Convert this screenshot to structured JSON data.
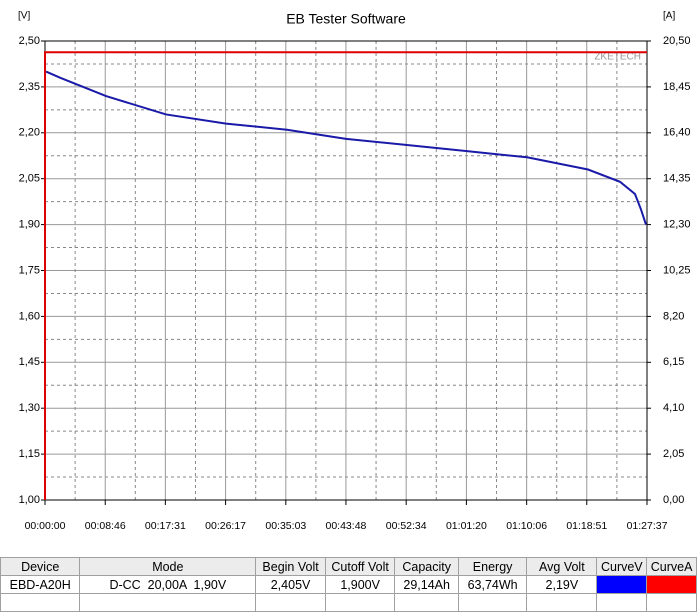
{
  "chart_data": {
    "type": "line",
    "title": "EB Tester Software",
    "y_label": "[V]",
    "y2_label": "[A]",
    "watermark": "ZKETECH",
    "xlim": [
      0,
      5257
    ],
    "ylim": [
      1.0,
      2.5
    ],
    "y2lim": [
      0,
      20.5
    ],
    "xticks": [
      {
        "value": 0,
        "label": "00:00:00"
      },
      {
        "value": 526,
        "label": "00:08:46"
      },
      {
        "value": 1051,
        "label": "00:17:31"
      },
      {
        "value": 1577,
        "label": "00:26:17"
      },
      {
        "value": 2103,
        "label": "00:35:03"
      },
      {
        "value": 2628,
        "label": "00:43:48"
      },
      {
        "value": 3154,
        "label": "00:52:34"
      },
      {
        "value": 3680,
        "label": "01:01:20"
      },
      {
        "value": 4206,
        "label": "01:10:06"
      },
      {
        "value": 4731,
        "label": "01:18:51"
      },
      {
        "value": 5257,
        "label": "01:27:37"
      }
    ],
    "yticks": [
      {
        "value": 2.5,
        "label": "2,50"
      },
      {
        "value": 2.35,
        "label": "2,35"
      },
      {
        "value": 2.2,
        "label": "2,20"
      },
      {
        "value": 2.05,
        "label": "2,05"
      },
      {
        "value": 1.9,
        "label": "1,90"
      },
      {
        "value": 1.75,
        "label": "1,75"
      },
      {
        "value": 1.6,
        "label": "1,60"
      },
      {
        "value": 1.45,
        "label": "1,45"
      },
      {
        "value": 1.3,
        "label": "1,30"
      },
      {
        "value": 1.15,
        "label": "1,15"
      },
      {
        "value": 1.0,
        "label": "1,00"
      }
    ],
    "y2ticks": [
      {
        "value": 20.5,
        "label": "20,50"
      },
      {
        "value": 18.45,
        "label": "18,45"
      },
      {
        "value": 16.4,
        "label": "16,40"
      },
      {
        "value": 14.35,
        "label": "14,35"
      },
      {
        "value": 12.3,
        "label": "12,30"
      },
      {
        "value": 10.25,
        "label": "10,25"
      },
      {
        "value": 8.2,
        "label": "8,20"
      },
      {
        "value": 6.15,
        "label": "6,15"
      },
      {
        "value": 4.1,
        "label": "4,10"
      },
      {
        "value": 2.05,
        "label": "2,05"
      },
      {
        "value": 0,
        "label": "0,00"
      }
    ],
    "grid": true,
    "series": [
      {
        "color": "#1a1aa8",
        "x": [
          9,
          131,
          533,
          1057,
          1581,
          2113,
          2629,
          3161,
          3685,
          4209,
          4742,
          5021,
          5152,
          5204,
          5248
        ],
        "values": [
          2.4,
          2.38,
          2.32,
          2.26,
          2.23,
          2.21,
          2.18,
          2.16,
          2.14,
          2.12,
          2.08,
          2.04,
          2.0,
          1.95,
          1.9
        ]
      },
      {
        "color": "#dd0000",
        "axis": "y2",
        "x": [
          0,
          0,
          5257
        ],
        "values": [
          0,
          20,
          20
        ]
      }
    ]
  },
  "table": {
    "columns": [
      "Device",
      "Mode",
      "Begin Volt",
      "Cutoff Volt",
      "Capacity",
      "Energy",
      "Avg Volt",
      "CurveV",
      "CurveA"
    ],
    "rows": [
      [
        "EBD-A20H",
        "D-CC  20,00A  1,90V",
        "2,405V",
        "1,900V",
        "29,14Ah",
        "63,74Wh",
        "2,19V"
      ]
    ],
    "swatch_colors": [
      "#0000ff",
      "#ff0000"
    ]
  }
}
